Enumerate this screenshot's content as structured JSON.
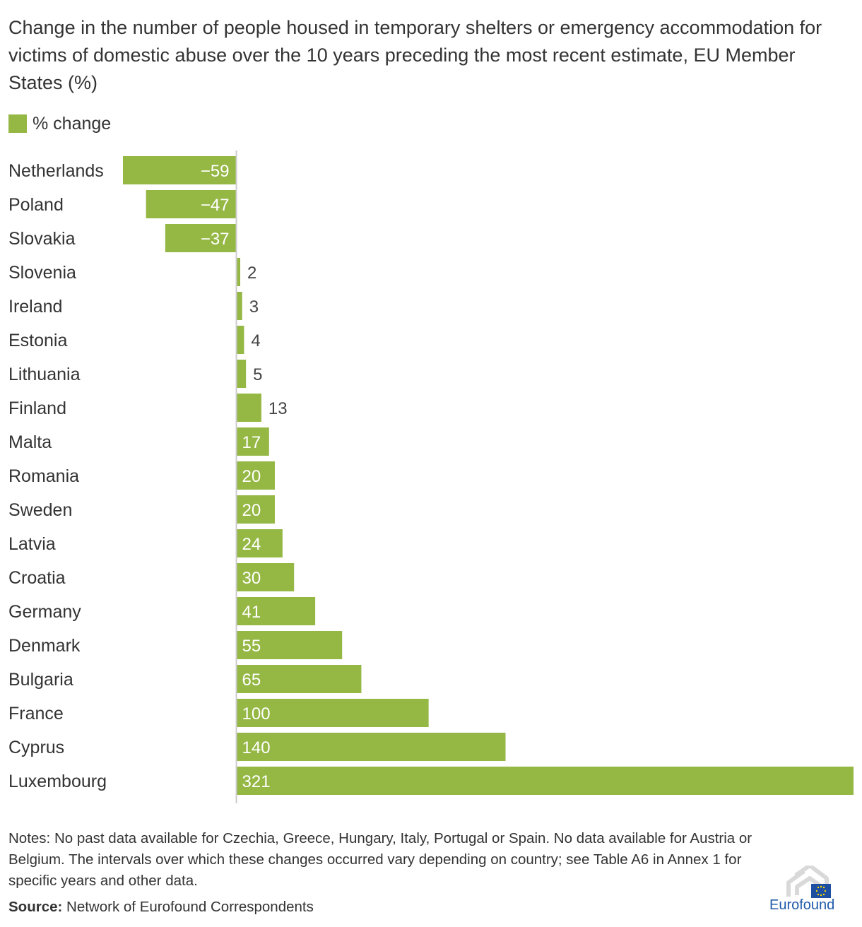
{
  "chart_data": {
    "type": "bar",
    "orientation": "horizontal",
    "title": "Change in the number of people housed in temporary shelters or emergency accommodation for victims of domestic abuse over the 10 years preceding the most recent estimate, EU Member States (%)",
    "legend": "% change",
    "categories": [
      "Netherlands",
      "Poland",
      "Slovakia",
      "Slovenia",
      "Ireland",
      "Estonia",
      "Lithuania",
      "Finland",
      "Malta",
      "Romania",
      "Sweden",
      "Latvia",
      "Croatia",
      "Germany",
      "Denmark",
      "Bulgaria",
      "France",
      "Cyprus",
      "Luxembourg"
    ],
    "values": [
      -59,
      -47,
      -37,
      2,
      3,
      4,
      5,
      13,
      17,
      20,
      20,
      24,
      30,
      41,
      55,
      65,
      100,
      140,
      321
    ],
    "labels": [
      "−59",
      "−47",
      "−37",
      "2",
      "3",
      "4",
      "5",
      "13",
      "17",
      "20",
      "20",
      "24",
      "30",
      "41",
      "55",
      "65",
      "100",
      "140",
      "321"
    ],
    "xlim": [
      -59,
      321
    ],
    "grid": false,
    "colors": {
      "bar": "#95b744",
      "axis": "#cccccc",
      "label_inside": "#ffffff",
      "label_outside": "#444444"
    }
  },
  "notes": "Notes: No past data available for Czechia, Greece, Hungary, Italy, Portugal or Spain. No data available for Austria or Belgium. The intervals over which these changes occurred vary depending on country; see Table A6 in Annex 1 for specific years and other data.",
  "source": {
    "label": "Source:",
    "text": " Network of Eurofound Correspondents"
  },
  "logo": {
    "text": "Eurofound",
    "icon": "eurofound-logo-icon"
  }
}
